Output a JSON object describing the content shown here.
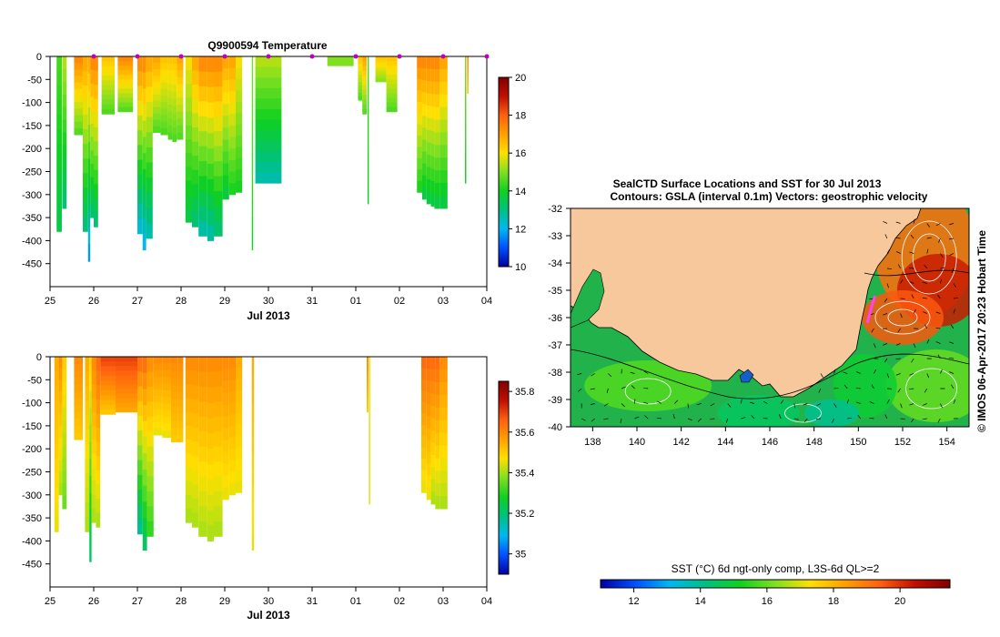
{
  "chart_data": [
    {
      "type": "heatmap",
      "panel": "temperature-depth-section",
      "title": "Q9900594  Temperature",
      "xlabel": "Jul 2013",
      "ylabel": "",
      "x_ticks": [
        "25",
        "26",
        "27",
        "28",
        "29",
        "30",
        "31",
        "01",
        "02",
        "03",
        "04"
      ],
      "xlim": [
        0,
        10
      ],
      "y_ticks": [
        0,
        -50,
        -100,
        -150,
        -200,
        -250,
        -300,
        -350,
        -400,
        -450
      ],
      "ylim": [
        -500,
        0
      ],
      "colorbar": {
        "ticks": [
          10,
          12,
          14,
          16,
          18,
          20
        ],
        "range": [
          10,
          20
        ]
      },
      "profile_markers": [
        1,
        2,
        3,
        4,
        5,
        6,
        7,
        8,
        9,
        10
      ],
      "profiles": [
        {
          "x": 0.15,
          "w": 0.12,
          "depth": 380,
          "surface": 14.5,
          "bottom": 13.5
        },
        {
          "x": 0.28,
          "w": 0.1,
          "depth": 330,
          "surface": 15.5,
          "bottom": 13.0
        },
        {
          "x": 0.55,
          "w": 0.2,
          "depth": 170,
          "surface": 17.5,
          "bottom": 14.5
        },
        {
          "x": 0.75,
          "w": 0.12,
          "depth": 380,
          "surface": 17.0,
          "bottom": 13.0
        },
        {
          "x": 0.87,
          "w": 0.05,
          "depth": 445,
          "surface": 17.0,
          "bottom": 11.5
        },
        {
          "x": 0.92,
          "w": 0.08,
          "depth": 350,
          "surface": 17.5,
          "bottom": 13.0
        },
        {
          "x": 1.0,
          "w": 0.1,
          "depth": 370,
          "surface": 17.5,
          "bottom": 13.0
        },
        {
          "x": 1.18,
          "w": 0.3,
          "depth": 125,
          "surface": 16.5,
          "bottom": 14.5
        },
        {
          "x": 1.55,
          "w": 0.35,
          "depth": 120,
          "surface": 17.5,
          "bottom": 14.5
        },
        {
          "x": 2.0,
          "w": 0.12,
          "depth": 385,
          "surface": 17.5,
          "bottom": 12.0
        },
        {
          "x": 2.12,
          "w": 0.08,
          "depth": 420,
          "surface": 17.5,
          "bottom": 11.8
        },
        {
          "x": 2.2,
          "w": 0.15,
          "depth": 395,
          "surface": 17.0,
          "bottom": 12.5
        },
        {
          "x": 2.35,
          "w": 0.18,
          "depth": 165,
          "surface": 17.0,
          "bottom": 14.5
        },
        {
          "x": 2.53,
          "w": 0.17,
          "depth": 170,
          "surface": 16.5,
          "bottom": 14.5
        },
        {
          "x": 2.7,
          "w": 0.1,
          "depth": 180,
          "surface": 16.5,
          "bottom": 14.5
        },
        {
          "x": 2.8,
          "w": 0.1,
          "depth": 185,
          "surface": 16.5,
          "bottom": 14.5
        },
        {
          "x": 2.9,
          "w": 0.15,
          "depth": 180,
          "surface": 17.0,
          "bottom": 14.5
        },
        {
          "x": 3.1,
          "w": 0.15,
          "depth": 360,
          "surface": 16.0,
          "bottom": 13.5
        },
        {
          "x": 3.25,
          "w": 0.15,
          "depth": 370,
          "surface": 17.0,
          "bottom": 13.0
        },
        {
          "x": 3.4,
          "w": 0.2,
          "depth": 390,
          "surface": 17.5,
          "bottom": 12.5
        },
        {
          "x": 3.6,
          "w": 0.15,
          "depth": 400,
          "surface": 17.5,
          "bottom": 12.5
        },
        {
          "x": 3.75,
          "w": 0.2,
          "depth": 390,
          "surface": 17.5,
          "bottom": 13.0
        },
        {
          "x": 3.95,
          "w": 0.15,
          "depth": 310,
          "surface": 17.0,
          "bottom": 13.5
        },
        {
          "x": 4.1,
          "w": 0.15,
          "depth": 300,
          "surface": 17.0,
          "bottom": 14.0
        },
        {
          "x": 4.25,
          "w": 0.15,
          "depth": 295,
          "surface": 16.0,
          "bottom": 14.0
        },
        {
          "x": 4.62,
          "w": 0.03,
          "depth": 420,
          "surface": 15.0,
          "bottom": 14.0
        },
        {
          "x": 4.7,
          "w": 0.6,
          "depth": 275,
          "surface": 15.5,
          "bottom": 12.5
        },
        {
          "x": 6.35,
          "w": 0.6,
          "depth": 20,
          "surface": 15.0,
          "bottom": 15.0
        },
        {
          "x": 7.05,
          "w": 0.1,
          "depth": 95,
          "surface": 16.5,
          "bottom": 14.5
        },
        {
          "x": 7.15,
          "w": 0.1,
          "depth": 125,
          "surface": 17.0,
          "bottom": 14.5
        },
        {
          "x": 7.27,
          "w": 0.03,
          "depth": 320,
          "surface": 14.5,
          "bottom": 14.0
        },
        {
          "x": 7.45,
          "w": 0.25,
          "depth": 55,
          "surface": 16.5,
          "bottom": 15.0
        },
        {
          "x": 7.7,
          "w": 0.25,
          "depth": 120,
          "surface": 16.5,
          "bottom": 14.5
        },
        {
          "x": 8.4,
          "w": 0.12,
          "depth": 295,
          "surface": 17.5,
          "bottom": 14.0
        },
        {
          "x": 8.52,
          "w": 0.1,
          "depth": 310,
          "surface": 17.5,
          "bottom": 13.5
        },
        {
          "x": 8.62,
          "w": 0.1,
          "depth": 320,
          "surface": 17.5,
          "bottom": 13.5
        },
        {
          "x": 8.72,
          "w": 0.08,
          "depth": 325,
          "surface": 17.5,
          "bottom": 13.5
        },
        {
          "x": 8.8,
          "w": 0.12,
          "depth": 330,
          "surface": 17.5,
          "bottom": 13.5
        },
        {
          "x": 8.92,
          "w": 0.18,
          "depth": 330,
          "surface": 17.0,
          "bottom": 13.5
        },
        {
          "x": 9.5,
          "w": 0.03,
          "depth": 275,
          "surface": 15.0,
          "bottom": 14.0
        },
        {
          "x": 9.55,
          "w": 0.03,
          "depth": 80,
          "surface": 17.5,
          "bottom": 16.5
        }
      ]
    },
    {
      "type": "heatmap",
      "panel": "salinity-depth-section",
      "title": "",
      "xlabel": "Jul 2013",
      "ylabel": "",
      "x_ticks": [
        "25",
        "26",
        "27",
        "28",
        "29",
        "30",
        "31",
        "01",
        "02",
        "03",
        "04"
      ],
      "xlim": [
        0,
        10
      ],
      "y_ticks": [
        0,
        -50,
        -100,
        -150,
        -200,
        -250,
        -300,
        -350,
        -400,
        -450
      ],
      "ylim": [
        -500,
        0
      ],
      "colorbar": {
        "ticks": [
          35,
          35.2,
          35.4,
          35.6,
          35.8
        ],
        "range": [
          34.9,
          35.85
        ]
      },
      "profiles": [
        {
          "x": 0.1,
          "w": 0.1,
          "depth": 380,
          "surface": 35.55,
          "bottom": 35.45
        },
        {
          "x": 0.2,
          "w": 0.08,
          "depth": 300,
          "surface": 35.6,
          "bottom": 35.4
        },
        {
          "x": 0.28,
          "w": 0.1,
          "depth": 330,
          "surface": 35.5,
          "bottom": 35.35
        },
        {
          "x": 0.55,
          "w": 0.2,
          "depth": 180,
          "surface": 35.6,
          "bottom": 35.5
        },
        {
          "x": 0.8,
          "w": 0.1,
          "depth": 380,
          "surface": 35.55,
          "bottom": 35.4
        },
        {
          "x": 0.9,
          "w": 0.05,
          "depth": 445,
          "surface": 35.5,
          "bottom": 35.2
        },
        {
          "x": 0.95,
          "w": 0.1,
          "depth": 360,
          "surface": 35.6,
          "bottom": 35.4
        },
        {
          "x": 1.05,
          "w": 0.1,
          "depth": 370,
          "surface": 35.65,
          "bottom": 35.4
        },
        {
          "x": 1.15,
          "w": 0.35,
          "depth": 125,
          "surface": 35.7,
          "bottom": 35.5
        },
        {
          "x": 1.5,
          "w": 0.5,
          "depth": 120,
          "surface": 35.7,
          "bottom": 35.55
        },
        {
          "x": 2.0,
          "w": 0.12,
          "depth": 385,
          "surface": 35.65,
          "bottom": 35.15
        },
        {
          "x": 2.12,
          "w": 0.1,
          "depth": 420,
          "surface": 35.65,
          "bottom": 35.2
        },
        {
          "x": 2.22,
          "w": 0.15,
          "depth": 390,
          "surface": 35.6,
          "bottom": 35.3
        },
        {
          "x": 2.37,
          "w": 0.2,
          "depth": 170,
          "surface": 35.6,
          "bottom": 35.45
        },
        {
          "x": 2.57,
          "w": 0.2,
          "depth": 175,
          "surface": 35.6,
          "bottom": 35.45
        },
        {
          "x": 2.77,
          "w": 0.15,
          "depth": 185,
          "surface": 35.6,
          "bottom": 35.5
        },
        {
          "x": 2.92,
          "w": 0.13,
          "depth": 185,
          "surface": 35.6,
          "bottom": 35.5
        },
        {
          "x": 3.1,
          "w": 0.15,
          "depth": 360,
          "surface": 35.6,
          "bottom": 35.4
        },
        {
          "x": 3.25,
          "w": 0.15,
          "depth": 370,
          "surface": 35.6,
          "bottom": 35.4
        },
        {
          "x": 3.4,
          "w": 0.2,
          "depth": 390,
          "surface": 35.6,
          "bottom": 35.4
        },
        {
          "x": 3.6,
          "w": 0.15,
          "depth": 400,
          "surface": 35.6,
          "bottom": 35.4
        },
        {
          "x": 3.75,
          "w": 0.2,
          "depth": 390,
          "surface": 35.6,
          "bottom": 35.4
        },
        {
          "x": 3.95,
          "w": 0.15,
          "depth": 310,
          "surface": 35.6,
          "bottom": 35.45
        },
        {
          "x": 4.1,
          "w": 0.15,
          "depth": 300,
          "surface": 35.6,
          "bottom": 35.45
        },
        {
          "x": 4.25,
          "w": 0.15,
          "depth": 295,
          "surface": 35.55,
          "bottom": 35.45
        },
        {
          "x": 4.62,
          "w": 0.05,
          "depth": 420,
          "surface": 35.55,
          "bottom": 35.45
        },
        {
          "x": 7.25,
          "w": 0.04,
          "depth": 120,
          "surface": 35.6,
          "bottom": 35.5
        },
        {
          "x": 7.3,
          "w": 0.03,
          "depth": 320,
          "surface": 35.45,
          "bottom": 35.45
        },
        {
          "x": 8.5,
          "w": 0.12,
          "depth": 295,
          "surface": 35.65,
          "bottom": 35.45
        },
        {
          "x": 8.62,
          "w": 0.1,
          "depth": 310,
          "surface": 35.65,
          "bottom": 35.45
        },
        {
          "x": 8.72,
          "w": 0.1,
          "depth": 320,
          "surface": 35.65,
          "bottom": 35.4
        },
        {
          "x": 8.82,
          "w": 0.1,
          "depth": 330,
          "surface": 35.65,
          "bottom": 35.4
        },
        {
          "x": 8.92,
          "w": 0.18,
          "depth": 330,
          "surface": 35.6,
          "bottom": 35.4
        }
      ]
    },
    {
      "type": "heatmap",
      "panel": "sst-map",
      "title_line1": "SealCTD Surface Locations and SST for 30 Jul 2013",
      "title_line2": "Contours: GSLA (interval 0.1m)  Vectors: geostrophic velocity",
      "side_label": "© IMOS 06-Apr-2017 20:23 Hobart Time",
      "x_ticks": [
        "138",
        "140",
        "142",
        "144",
        "146",
        "148",
        "150",
        "152",
        "154"
      ],
      "x_values": [
        138,
        140,
        142,
        144,
        146,
        148,
        150,
        152,
        154
      ],
      "xlim": [
        137,
        155
      ],
      "y_ticks": [
        "-32",
        "-33",
        "-34",
        "-35",
        "-36",
        "-37",
        "-38",
        "-39",
        "-40"
      ],
      "y_values": [
        -32,
        -33,
        -34,
        -35,
        -36,
        -37,
        -38,
        -39,
        -40
      ],
      "ylim": [
        -40,
        -32
      ],
      "colorbar_label": "SST (°C) 6d ngt-only comp, L3S-6d QL>=2",
      "colorbar": {
        "ticks": [
          12,
          14,
          16,
          18,
          20
        ],
        "range": [
          11,
          21.5
        ]
      },
      "track": [
        [
          150.75,
          -35.2
        ],
        [
          150.6,
          -35.6
        ],
        [
          150.5,
          -35.9
        ],
        [
          150.4,
          -36.2
        ]
      ],
      "land_color": "#f7c89b"
    }
  ]
}
